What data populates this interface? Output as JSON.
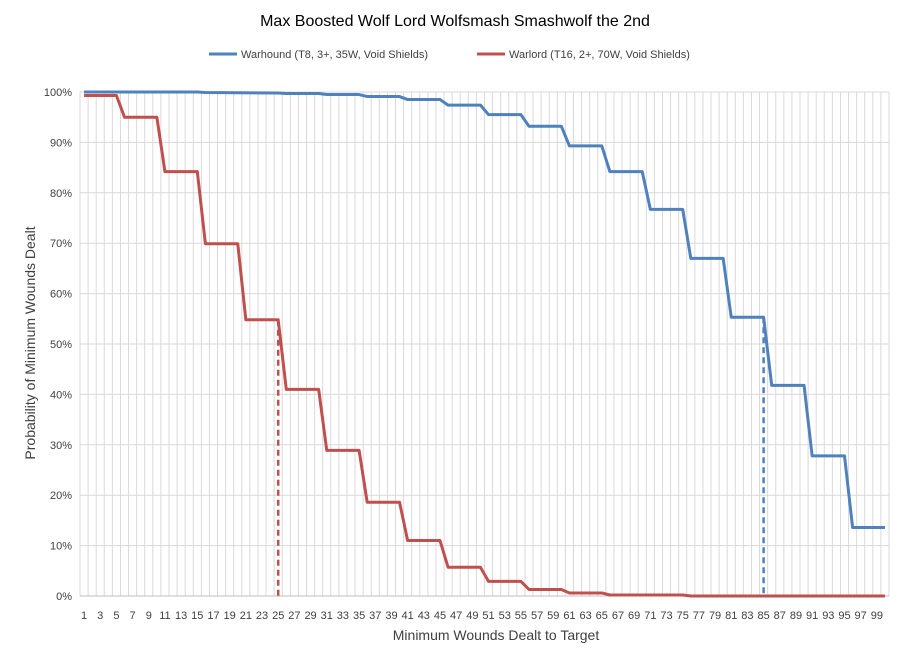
{
  "chart_data": {
    "type": "line",
    "title": "Max Boosted Wolf Lord Wolfsmash Smashwolf the 2nd",
    "xlabel": "Minimum Wounds Dealt  to Target",
    "ylabel": "Probability of Minimum Wounds Dealt",
    "xlim": [
      1,
      100
    ],
    "ylim": [
      0,
      1
    ],
    "x_tick_labels": [
      "1",
      "3",
      "5",
      "7",
      "9",
      "11",
      "13",
      "15",
      "17",
      "19",
      "21",
      "23",
      "25",
      "27",
      "29",
      "31",
      "33",
      "35",
      "37",
      "39",
      "41",
      "43",
      "45",
      "47",
      "49",
      "51",
      "53",
      "55",
      "57",
      "59",
      "61",
      "63",
      "65",
      "67",
      "69",
      "71",
      "73",
      "75",
      "77",
      "79",
      "81",
      "83",
      "85",
      "87",
      "89",
      "91",
      "93",
      "95",
      "97",
      "99"
    ],
    "y_tick_labels": [
      "0%",
      "10%",
      "20%",
      "30%",
      "40%",
      "50%",
      "60%",
      "70%",
      "80%",
      "90%",
      "100%"
    ],
    "grid": true,
    "legend_position": "top",
    "series": [
      {
        "name": "Warhound (T8, 3+, 35W, Void Shields)",
        "color": "#4f81bd",
        "points": [
          [
            1,
            1.0
          ],
          [
            15,
            1.0
          ],
          [
            16,
            0.999
          ],
          [
            25,
            0.998
          ],
          [
            26,
            0.997
          ],
          [
            30,
            0.997
          ],
          [
            31,
            0.995
          ],
          [
            35,
            0.995
          ],
          [
            36,
            0.991
          ],
          [
            40,
            0.991
          ],
          [
            41,
            0.985
          ],
          [
            45,
            0.985
          ],
          [
            46,
            0.974
          ],
          [
            50,
            0.974
          ],
          [
            51,
            0.955
          ],
          [
            55,
            0.955
          ],
          [
            56,
            0.932
          ],
          [
            60,
            0.932
          ],
          [
            61,
            0.893
          ],
          [
            65,
            0.893
          ],
          [
            66,
            0.842
          ],
          [
            70,
            0.842
          ],
          [
            71,
            0.767
          ],
          [
            75,
            0.767
          ],
          [
            76,
            0.67
          ],
          [
            80,
            0.67
          ],
          [
            81,
            0.553
          ],
          [
            85,
            0.553
          ],
          [
            86,
            0.418
          ],
          [
            90,
            0.418
          ],
          [
            91,
            0.278
          ],
          [
            95,
            0.278
          ],
          [
            96,
            0.136
          ],
          [
            100,
            0.136
          ]
        ]
      },
      {
        "name": "Warlord (T16, 2+, 70W, Void Shields)",
        "color": "#c0504d",
        "points": [
          [
            1,
            0.993
          ],
          [
            5,
            0.993
          ],
          [
            6,
            0.95
          ],
          [
            10,
            0.95
          ],
          [
            11,
            0.842
          ],
          [
            15,
            0.842
          ],
          [
            16,
            0.699
          ],
          [
            20,
            0.699
          ],
          [
            21,
            0.548
          ],
          [
            25,
            0.548
          ],
          [
            26,
            0.41
          ],
          [
            30,
            0.41
          ],
          [
            31,
            0.289
          ],
          [
            35,
            0.289
          ],
          [
            36,
            0.186
          ],
          [
            40,
            0.186
          ],
          [
            41,
            0.11
          ],
          [
            45,
            0.11
          ],
          [
            46,
            0.057
          ],
          [
            50,
            0.057
          ],
          [
            51,
            0.029
          ],
          [
            55,
            0.029
          ],
          [
            56,
            0.013
          ],
          [
            60,
            0.013
          ],
          [
            61,
            0.006
          ],
          [
            65,
            0.006
          ],
          [
            66,
            0.002
          ],
          [
            75,
            0.002
          ],
          [
            76,
            0.0
          ],
          [
            100,
            0.0
          ]
        ]
      }
    ],
    "markers": [
      {
        "x": 25,
        "y": 0.548,
        "color": "#c0504d",
        "style": "dashed"
      },
      {
        "x": 85,
        "y": 0.553,
        "color": "#4f81bd",
        "style": "dashed"
      }
    ]
  }
}
